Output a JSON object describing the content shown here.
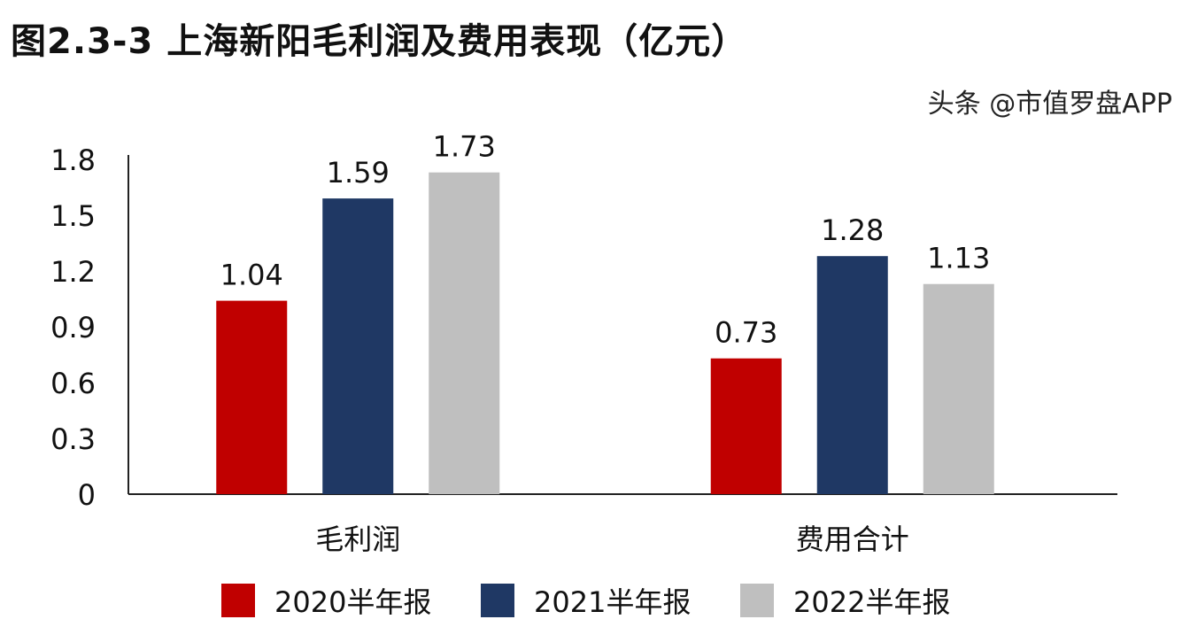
{
  "chart_data": {
    "type": "bar",
    "title": "图2.3-3 上海新阳毛利润及费用表现（亿元）",
    "categories": [
      "毛利润",
      "费用合计"
    ],
    "series": [
      {
        "name": "2020半年报",
        "values": [
          1.04,
          0.73
        ],
        "color": "#C00000"
      },
      {
        "name": "2021半年报",
        "values": [
          1.59,
          1.28
        ],
        "color": "#1F3864"
      },
      {
        "name": "2022半年报",
        "values": [
          1.73,
          1.13
        ],
        "color": "#BFBFBF"
      }
    ],
    "yticks": [
      "0",
      "0.3",
      "0.6",
      "0.9",
      "1.2",
      "1.5",
      "1.8"
    ],
    "ylim": [
      0,
      1.8
    ],
    "grid": false,
    "legend": "bottom"
  },
  "watermark": "头条 @市值罗盘APP"
}
